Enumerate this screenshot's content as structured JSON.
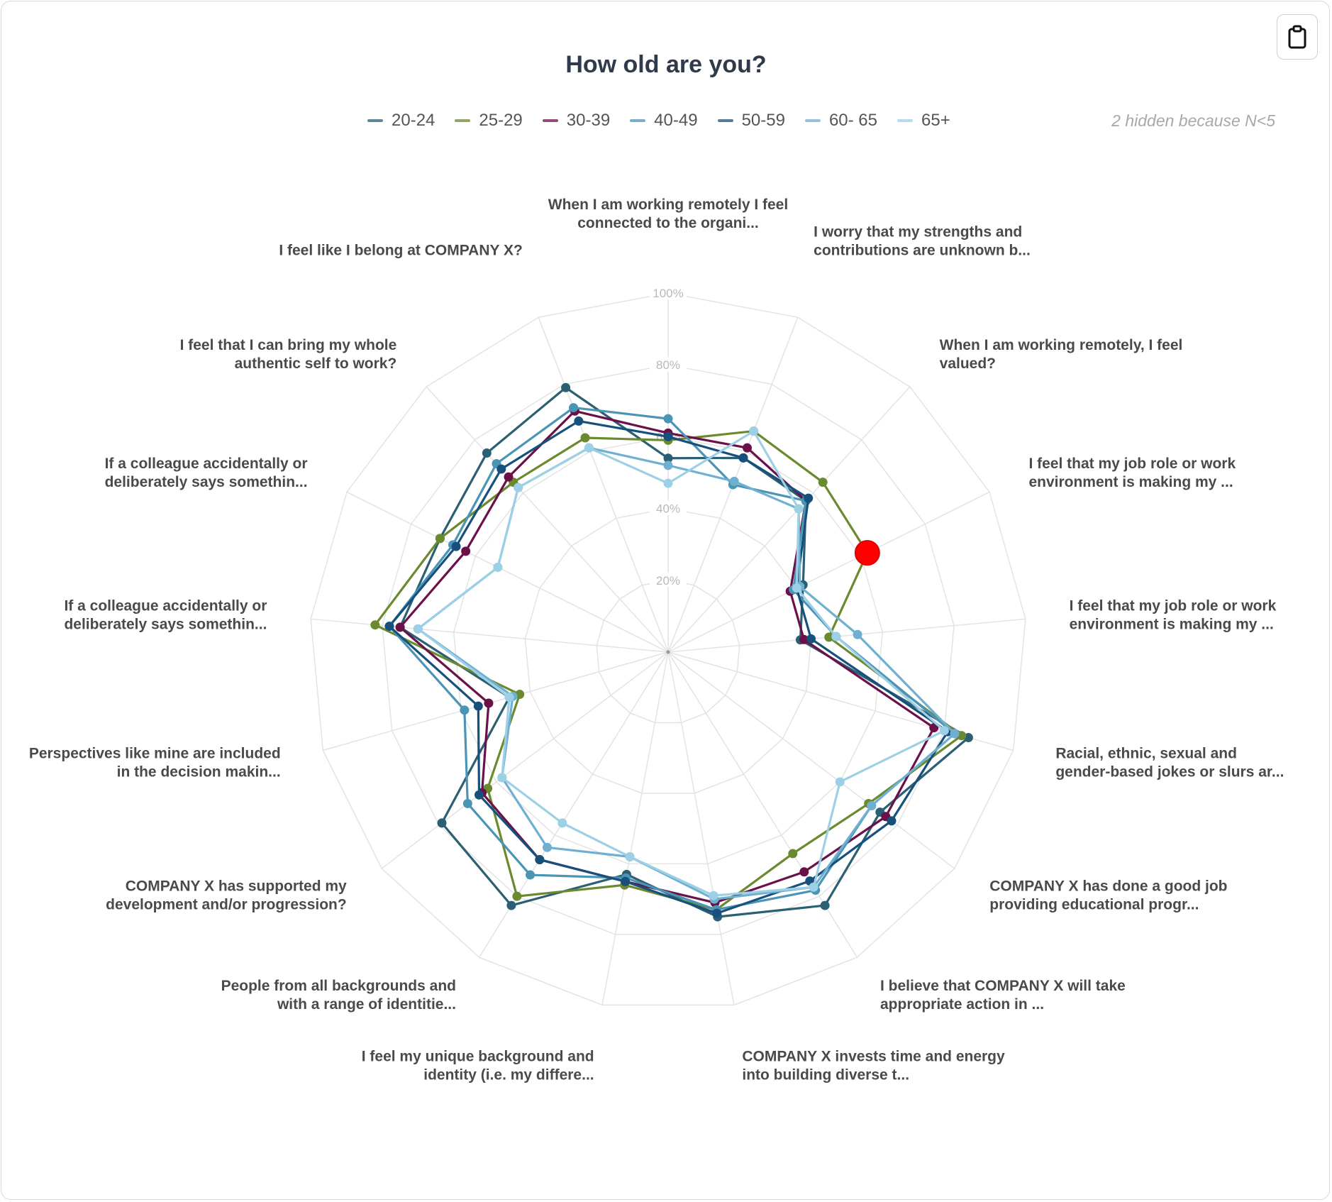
{
  "header": {
    "title": "How old are you?",
    "copy_button_icon": "clipboard-icon",
    "hidden_note": "2 hidden because N<5"
  },
  "legend": [
    {
      "label": "20-24",
      "color": "#2b5f73"
    },
    {
      "label": "25-29",
      "color": "#6b8a2f"
    },
    {
      "label": "30-39",
      "color": "#6b1048"
    },
    {
      "label": "40-49",
      "color": "#4a94b5"
    },
    {
      "label": "50-59",
      "color": "#17507d"
    },
    {
      "label": "60- 65",
      "color": "#6fb0d0"
    },
    {
      "label": "65+",
      "color": "#9dd0e6"
    }
  ],
  "chart_data": {
    "type": "radar",
    "title": "How old are you?",
    "categories": [
      [
        "When I am working remotely I feel",
        "connected to the organi..."
      ],
      [
        "I worry that my strengths and",
        "contributions are unknown b..."
      ],
      [
        "When I am working remotely, I feel",
        "valued?"
      ],
      [
        "I feel that my job role or work",
        "environment is making my ..."
      ],
      [
        "I feel that my job role or work",
        "environment is making my ..."
      ],
      [
        "Racial, ethnic, sexual and",
        "gender-based jokes or slurs ar..."
      ],
      [
        "COMPANY X has done a good job",
        "providing educational progr..."
      ],
      [
        "I believe that COMPANY X will take",
        "appropriate action in ..."
      ],
      [
        "COMPANY X invests time and energy",
        "into building diverse t..."
      ],
      [
        "I feel my unique background and",
        "identity (i.e. my differe..."
      ],
      [
        "People from all backgrounds and",
        "with a range of identitie..."
      ],
      [
        "COMPANY X has supported my",
        "development and/or progression?"
      ],
      [
        "Perspectives like mine are included",
        "in the decision makin..."
      ],
      [
        "If a colleague accidentally or",
        "deliberately says somethin..."
      ],
      [
        "If a colleague accidentally or",
        "deliberately says somethin..."
      ],
      [
        "I feel that I can bring my whole",
        "authentic self to work?"
      ],
      [
        "I feel like I belong at COMPANY X?"
      ]
    ],
    "ticks": [
      "20%",
      "40%",
      "60%",
      "80%",
      "100%"
    ],
    "rlim": [
      0,
      100
    ],
    "grid": true,
    "legend_position": "top",
    "series": [
      {
        "name": "20-24",
        "values": [
          54,
          58,
          57,
          42,
          37,
          87,
          74,
          83,
          75,
          63,
          83,
          79,
          46,
          75,
          71,
          75,
          79
        ]
      },
      {
        "name": "25-29",
        "values": [
          59,
          66,
          64,
          62,
          45,
          85,
          70,
          66,
          73,
          66,
          80,
          63,
          43,
          82,
          71,
          64,
          64
        ]
      },
      {
        "name": "30-39",
        "values": [
          61,
          61,
          57,
          38,
          38,
          77,
          76,
          72,
          71,
          65,
          68,
          65,
          52,
          75,
          63,
          66,
          72
        ]
      },
      {
        "name": "40-49",
        "values": [
          65,
          50,
          57,
          39,
          47,
          83,
          71,
          78,
          73,
          64,
          73,
          70,
          59,
          78,
          67,
          71,
          73
        ]
      },
      {
        "name": "50-59",
        "values": [
          60,
          58,
          58,
          40,
          40,
          81,
          78,
          75,
          74,
          65,
          68,
          66,
          55,
          78,
          66,
          69,
          69
        ]
      },
      {
        "name": "60- 65",
        "values": [
          52,
          51,
          54,
          41,
          53,
          83,
          71,
          77,
          70,
          58,
          64,
          58,
          45,
          70,
          53,
          62,
          61
        ]
      },
      {
        "name": "65+",
        "values": [
          47,
          66,
          54,
          40,
          47,
          80,
          60,
          77,
          69,
          58,
          56,
          58,
          46,
          70,
          53,
          62,
          61
        ]
      }
    ],
    "highlight": {
      "series": "25-29",
      "category_index": 3,
      "color": "#ff0000"
    }
  }
}
